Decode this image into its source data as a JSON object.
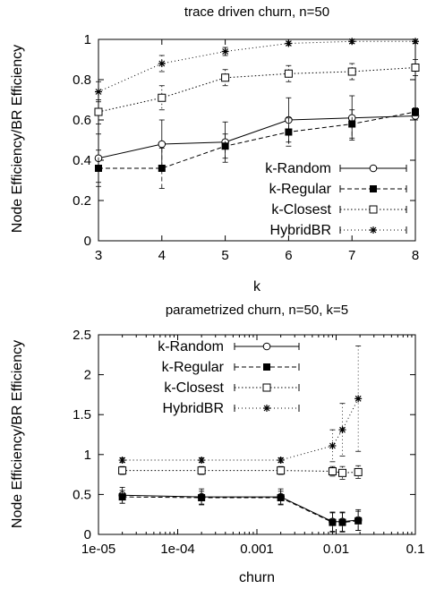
{
  "chart_data": [
    {
      "type": "line",
      "title": "trace driven churn, n=50",
      "xlabel": "k",
      "ylabel": "Node Efficiency/BR Efficiency",
      "xscale": "linear",
      "xlim": [
        3,
        8
      ],
      "ylim": [
        0,
        1
      ],
      "xticks": [
        3,
        4,
        5,
        6,
        7,
        8
      ],
      "xtick_labels": [
        "3",
        "4",
        "5",
        "6",
        "7",
        "8"
      ],
      "yticks": [
        0,
        0.2,
        0.4,
        0.6,
        0.8,
        1
      ],
      "ytick_labels": [
        "0",
        "0.2",
        "0.4",
        "0.6",
        "0.8",
        "1"
      ],
      "grid": false,
      "legend": "bottom-right",
      "series": [
        {
          "name": "k-Random",
          "marker": "circle",
          "dash": "none",
          "x": [
            3,
            4,
            5,
            6,
            7,
            8
          ],
          "y": [
            0.41,
            0.48,
            0.49,
            0.6,
            0.61,
            0.62
          ],
          "err": [
            0.12,
            0.12,
            0.1,
            0.11,
            0.11,
            0.02
          ]
        },
        {
          "name": "k-Regular",
          "marker": "filled-square",
          "dash": "5,3",
          "x": [
            3,
            4,
            5,
            6,
            7,
            8
          ],
          "y": [
            0.36,
            0.36,
            0.47,
            0.54,
            0.58,
            0.64
          ],
          "err": [
            0.09,
            0.1,
            0.06,
            0.07,
            0.07,
            0.02
          ]
        },
        {
          "name": "k-Closest",
          "marker": "open-square",
          "dash": "1.5,2.5",
          "x": [
            3,
            4,
            5,
            6,
            7,
            8
          ],
          "y": [
            0.64,
            0.71,
            0.81,
            0.83,
            0.84,
            0.86
          ],
          "err": [
            0.06,
            0.06,
            0.04,
            0.04,
            0.04,
            0.04
          ]
        },
        {
          "name": "HybridBR",
          "marker": "star",
          "dash": "1,3",
          "x": [
            3,
            4,
            5,
            6,
            7,
            8
          ],
          "y": [
            0.74,
            0.88,
            0.94,
            0.98,
            0.99,
            0.99
          ],
          "err": [
            0.05,
            0.04,
            0.02,
            0.01,
            0.01,
            0.01
          ]
        }
      ]
    },
    {
      "type": "line",
      "title": "parametrized churn, n=50, k=5",
      "xlabel": "churn",
      "ylabel": "Node Efficiency/BR Efficiency",
      "xscale": "log",
      "xlim": [
        1e-05,
        0.1
      ],
      "ylim": [
        0,
        2.5
      ],
      "xticks": [
        1e-05,
        0.0001,
        0.001,
        0.01,
        0.1
      ],
      "xtick_labels": [
        "1e-05",
        "1e-04",
        "0.001",
        "0.01",
        "0.1"
      ],
      "yticks": [
        0,
        0.5,
        1,
        1.5,
        2,
        2.5
      ],
      "ytick_labels": [
        "0",
        "0.5",
        "1",
        "1.5",
        "2",
        "2.5"
      ],
      "grid": false,
      "legend": "top-left",
      "series": [
        {
          "name": "k-Random",
          "marker": "circle",
          "dash": "none",
          "x": [
            2e-05,
            0.0002,
            0.002,
            0.009,
            0.012,
            0.019
          ],
          "y": [
            0.49,
            0.47,
            0.47,
            0.16,
            0.16,
            0.18
          ],
          "err": [
            0.1,
            0.1,
            0.1,
            0.12,
            0.12,
            0.13
          ]
        },
        {
          "name": "k-Regular",
          "marker": "filled-square",
          "dash": "5,3",
          "x": [
            2e-05,
            0.0002,
            0.002,
            0.009,
            0.012,
            0.019
          ],
          "y": [
            0.47,
            0.46,
            0.46,
            0.15,
            0.15,
            0.17
          ],
          "err": [
            0.08,
            0.08,
            0.08,
            0.12,
            0.12,
            0.12
          ]
        },
        {
          "name": "k-Closest",
          "marker": "open-square",
          "dash": "1.5,2.5",
          "x": [
            2e-05,
            0.0002,
            0.002,
            0.009,
            0.012,
            0.019
          ],
          "y": [
            0.8,
            0.8,
            0.8,
            0.79,
            0.77,
            0.78
          ],
          "err": [
            0.05,
            0.05,
            0.05,
            0.06,
            0.08,
            0.08
          ]
        },
        {
          "name": "HybridBR",
          "marker": "star",
          "dash": "1,3",
          "x": [
            2e-05,
            0.0002,
            0.002,
            0.009,
            0.012,
            0.019
          ],
          "y": [
            0.93,
            0.93,
            0.93,
            1.11,
            1.31,
            1.7
          ],
          "err": [
            0.03,
            0.03,
            0.03,
            0.2,
            0.33,
            0.66
          ]
        }
      ]
    }
  ]
}
